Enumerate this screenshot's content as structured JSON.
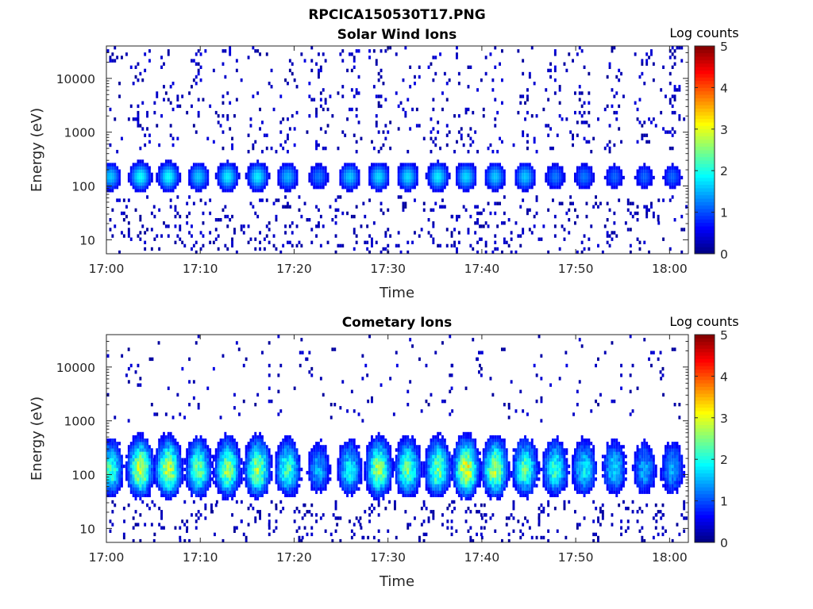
{
  "figure": {
    "filename_title": "RPCICA150530T17.PNG"
  },
  "chart_data": [
    {
      "type": "heatmap",
      "title": "Solar Wind Ions",
      "xlabel": "Time",
      "ylabel": "Energy (eV)",
      "x_ticks": [
        "17:00",
        "17:10",
        "17:20",
        "17:30",
        "17:40",
        "17:50",
        "18:00"
      ],
      "y_ticks": [
        "10",
        "100",
        "1000",
        "10000"
      ],
      "y_scale": "log",
      "ylim": [
        5.5,
        40000
      ],
      "xlim_minutes": [
        0,
        62
      ],
      "colorbar": {
        "label": "Log counts",
        "ticks": [
          "0",
          "1",
          "2",
          "3",
          "4",
          "5"
        ],
        "range": [
          0,
          5
        ],
        "colormap": "jet"
      },
      "burst_centers_min": [
        0.3,
        3.5,
        6.5,
        9.7,
        12.8,
        16.0,
        19.2,
        22.5,
        25.8,
        28.9,
        32.0,
        35.2,
        38.2,
        41.3,
        44.5,
        47.7,
        50.8,
        54.0,
        57.2,
        60.2
      ],
      "burst_peak_log_counts": [
        1.6,
        1.9,
        1.9,
        1.6,
        1.8,
        1.8,
        1.5,
        1.2,
        1.6,
        1.7,
        1.7,
        1.8,
        1.7,
        1.6,
        1.6,
        1.2,
        1.2,
        1.1,
        1.1,
        1.1
      ],
      "peak_energy_eV": 150
    },
    {
      "type": "heatmap",
      "title": "Cometary Ions",
      "xlabel": "Time",
      "ylabel": "Energy (eV)",
      "x_ticks": [
        "17:00",
        "17:10",
        "17:20",
        "17:30",
        "17:40",
        "17:50",
        "18:00"
      ],
      "y_ticks": [
        "10",
        "100",
        "1000",
        "10000"
      ],
      "y_scale": "log",
      "ylim": [
        5.5,
        40000
      ],
      "xlim_minutes": [
        0,
        62
      ],
      "colorbar": {
        "label": "Log counts",
        "ticks": [
          "0",
          "1",
          "2",
          "3",
          "4",
          "5"
        ],
        "range": [
          0,
          5
        ],
        "colormap": "jet"
      },
      "burst_centers_min": [
        0.3,
        3.5,
        6.5,
        9.7,
        12.8,
        16.0,
        19.2,
        22.5,
        25.8,
        28.9,
        32.0,
        35.2,
        38.2,
        41.3,
        44.5,
        47.7,
        50.8,
        54.0,
        57.2,
        60.2
      ],
      "burst_peak_log_counts": [
        2.4,
        3.1,
        3.1,
        2.6,
        2.8,
        2.9,
        2.4,
        1.6,
        2.0,
        2.9,
        2.6,
        2.7,
        3.3,
        3.0,
        2.5,
        2.3,
        2.0,
        1.9,
        1.6,
        1.6
      ],
      "peak_energy_eV": 120
    }
  ]
}
